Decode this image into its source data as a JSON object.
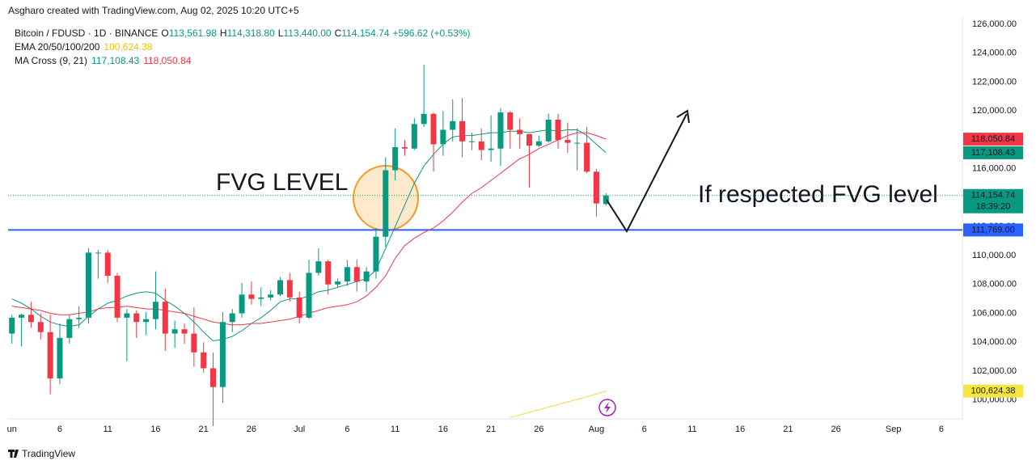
{
  "chart_data": {
    "type": "candlestick",
    "credit": "Asgharo created with TradingView.com, Aug 02, 2025 10:20 UTC+5",
    "symbol": "Bitcoin / FDUSD · 1D · BINANCE",
    "ohlc_legend": [
      {
        "key": "O",
        "value": "113,561.98"
      },
      {
        "key": "H",
        "value": "114,318.80"
      },
      {
        "key": "L",
        "value": "113,440.00"
      },
      {
        "key": "C",
        "value": "114,154.74"
      }
    ],
    "change": "+596.62 (+0.53%)",
    "indicators": [
      {
        "name": "EMA 20/50/100/200",
        "values": [
          {
            "text": "100,624.38",
            "color": "#e8c500"
          }
        ]
      },
      {
        "name": "MA Cross (9, 21)",
        "values": [
          {
            "text": "117,108.43",
            "color": "#089981"
          },
          {
            "text": "118,050.84",
            "color": "#f23645"
          }
        ]
      }
    ],
    "up_color": "#089981",
    "down_color": "#f23645",
    "open": [
      104600,
      105700,
      105900,
      105400,
      104700,
      101500,
      104300,
      105600,
      105700,
      110200,
      110200,
      108600,
      105700,
      106000,
      105400,
      105600,
      106800,
      104600,
      104900,
      104600,
      103300,
      102200,
      100900,
      105400,
      106000,
      107300,
      107000,
      107100,
      107300,
      108300,
      107100,
      105700,
      108800,
      109600,
      108000,
      108200,
      109200,
      108200,
      108900,
      111300,
      115900,
      117500,
      117400,
      119100,
      119800,
      117700,
      118700,
      119300,
      117900,
      117900,
      117300,
      117400,
      119900,
      118700,
      118400,
      117600,
      117900,
      119400,
      118000,
      117800,
      117800,
      115800,
      113561.98
    ],
    "high": [
      105900,
      105980,
      106800,
      106000,
      105900,
      105300,
      105900,
      106500,
      110500,
      110400,
      110400,
      108800,
      106300,
      106200,
      106100,
      108900,
      107700,
      105500,
      105300,
      106400,
      104000,
      103300,
      106100,
      106300,
      108100,
      108200,
      107800,
      107600,
      108500,
      108800,
      107500,
      109700,
      110500,
      109700,
      108400,
      109700,
      109700,
      109200,
      111900,
      116800,
      118800,
      118000,
      119500,
      123200,
      119900,
      120000,
      120800,
      120900,
      118500,
      118800,
      119700,
      120200,
      120000,
      119500,
      118400,
      118300,
      119800,
      119800,
      119200,
      118800,
      118900,
      116000,
      114318.8
    ],
    "low": [
      103900,
      103700,
      105000,
      104200,
      100400,
      101100,
      103900,
      105000,
      105300,
      108400,
      108100,
      105400,
      102700,
      104300,
      104500,
      104900,
      103400,
      103600,
      103900,
      102300,
      101900,
      98200,
      99800,
      104700,
      105700,
      106600,
      106500,
      106900,
      107200,
      106800,
      105300,
      105600,
      108600,
      107300,
      107800,
      107900,
      107500,
      107500,
      108400,
      110600,
      115200,
      116900,
      117300,
      118900,
      115800,
      116900,
      117900,
      116800,
      117300,
      116600,
      116500,
      116200,
      117400,
      117400,
      114700,
      117500,
      117800,
      117400,
      117100,
      115900,
      115700,
      112700,
      113440
    ],
    "close": [
      105700,
      105900,
      105400,
      104700,
      101500,
      104300,
      105600,
      105700,
      110200,
      110200,
      108600,
      105700,
      106000,
      105400,
      105600,
      106800,
      104600,
      104900,
      104600,
      103300,
      102200,
      100900,
      105400,
      106000,
      107300,
      107000,
      107100,
      107300,
      108300,
      107100,
      105700,
      108800,
      109600,
      108000,
      108200,
      109200,
      108200,
      108900,
      111300,
      115900,
      117500,
      117400,
      119100,
      119800,
      117700,
      118700,
      119300,
      117900,
      117900,
      117300,
      117400,
      119900,
      118700,
      118400,
      117600,
      117900,
      119400,
      118000,
      117800,
      117800,
      115800,
      113600,
      114154.74
    ],
    "lines": [
      {
        "name": "EMA",
        "color": "#f5d742",
        "values": [
          null,
          null,
          null,
          null,
          null,
          null,
          null,
          null,
          null,
          null,
          null,
          null,
          null,
          null,
          null,
          null,
          null,
          null,
          null,
          null,
          null,
          null,
          null,
          null,
          null,
          null,
          null,
          null,
          null,
          null,
          null,
          null,
          null,
          null,
          null,
          null,
          null,
          null,
          null,
          null,
          null,
          null,
          null,
          null,
          null,
          null,
          null,
          null,
          null,
          null,
          null,
          null,
          98800,
          98970,
          99150,
          99330,
          99510,
          99690,
          99870,
          100050,
          100230,
          100430,
          100624.38
        ]
      },
      {
        "name": "MA 9",
        "color": "#089981",
        "values": [
          107000,
          106700,
          106300,
          105800,
          105400,
          105200,
          105100,
          105200,
          105800,
          106300,
          106700,
          106900,
          107200,
          107400,
          107500,
          107400,
          106900,
          106500,
          106000,
          105400,
          104700,
          104100,
          104200,
          104400,
          104800,
          105300,
          105700,
          106200,
          106800,
          107000,
          107000,
          107200,
          107500,
          107600,
          107800,
          108000,
          108200,
          108400,
          109000,
          110500,
          112000,
          113500,
          115000,
          116200,
          117000,
          117700,
          118200,
          118300,
          118300,
          118400,
          118500,
          118500,
          118600,
          118600,
          118500,
          118600,
          118700,
          118600,
          118700,
          118700,
          118300,
          117700,
          117108.43
        ]
      },
      {
        "name": "MA 21",
        "color": "#f23645",
        "values": [
          106500,
          106400,
          106300,
          106200,
          106000,
          105900,
          105900,
          106000,
          106100,
          106300,
          106400,
          106400,
          106500,
          106400,
          106300,
          106300,
          106200,
          106100,
          106000,
          105800,
          105600,
          105400,
          105300,
          105200,
          105200,
          105300,
          105300,
          105400,
          105500,
          105600,
          105800,
          106000,
          106200,
          106400,
          106500,
          106600,
          106800,
          107200,
          107800,
          108600,
          109800,
          110700,
          111200,
          111600,
          111900,
          112400,
          113000,
          113700,
          114300,
          114700,
          115200,
          115700,
          116200,
          116700,
          117000,
          117400,
          117700,
          118000,
          118300,
          118500,
          118500,
          118300,
          118050.84
        ]
      }
    ],
    "xlim": [
      -0.4,
      99.2
    ],
    "xticks": [
      {
        "value": 0,
        "label": "un"
      },
      {
        "value": 5,
        "label": "6"
      },
      {
        "value": 10,
        "label": "11"
      },
      {
        "value": 15,
        "label": "16"
      },
      {
        "value": 20,
        "label": "21"
      },
      {
        "value": 25,
        "label": "26"
      },
      {
        "value": 30,
        "label": "Jul"
      },
      {
        "value": 35,
        "label": "6"
      },
      {
        "value": 40,
        "label": "11"
      },
      {
        "value": 45,
        "label": "16"
      },
      {
        "value": 50,
        "label": "21"
      },
      {
        "value": 55,
        "label": "26"
      },
      {
        "value": 61,
        "label": "Aug"
      },
      {
        "value": 66,
        "label": "6"
      },
      {
        "value": 71,
        "label": "11"
      },
      {
        "value": 76,
        "label": "16"
      },
      {
        "value": 81,
        "label": "21"
      },
      {
        "value": 86,
        "label": "26"
      },
      {
        "value": 92,
        "label": "Sep"
      },
      {
        "value": 97,
        "label": "6"
      }
    ],
    "ylim": [
      98700,
      126560
    ],
    "yticks": [
      {
        "value": 100000,
        "label": "100,000.00"
      },
      {
        "value": 102000,
        "label": "102,000.00"
      },
      {
        "value": 104000,
        "label": "104,000.00"
      },
      {
        "value": 106000,
        "label": "106,000.00"
      },
      {
        "value": 108000,
        "label": "108,000.00"
      },
      {
        "value": 110000,
        "label": "110,000.00"
      },
      {
        "value": 112000,
        "label": "112,000.00"
      },
      {
        "value": 114000,
        "label": "114,000.00"
      },
      {
        "value": 116000,
        "label": "116,000.00"
      },
      {
        "value": 118000,
        "label": "118,000.00"
      },
      {
        "value": 120000,
        "label": "120,000.00"
      },
      {
        "value": 122000,
        "label": "122,000.00"
      },
      {
        "value": 124000,
        "label": "124,000.00"
      },
      {
        "value": 126000,
        "label": "126,000.00"
      }
    ],
    "hline": {
      "value": 111769,
      "label": "111,769.00",
      "color": "#2962ff"
    },
    "price_labels": [
      {
        "value": 118050.84,
        "label": "118,050.84",
        "color": "#f23645"
      },
      {
        "value": 117108.43,
        "label": "117,108.43",
        "color": "#089981"
      },
      {
        "value": 114154.74,
        "label": "114,154.74",
        "sublabel": "18:39:20",
        "color": "#089981"
      },
      {
        "value": 100624.38,
        "label": "100,624.38",
        "color": "#f5e63c"
      }
    ],
    "annotations": [
      "FVG LEVEL",
      "If respected FVG level"
    ],
    "brand": "TradingView"
  }
}
